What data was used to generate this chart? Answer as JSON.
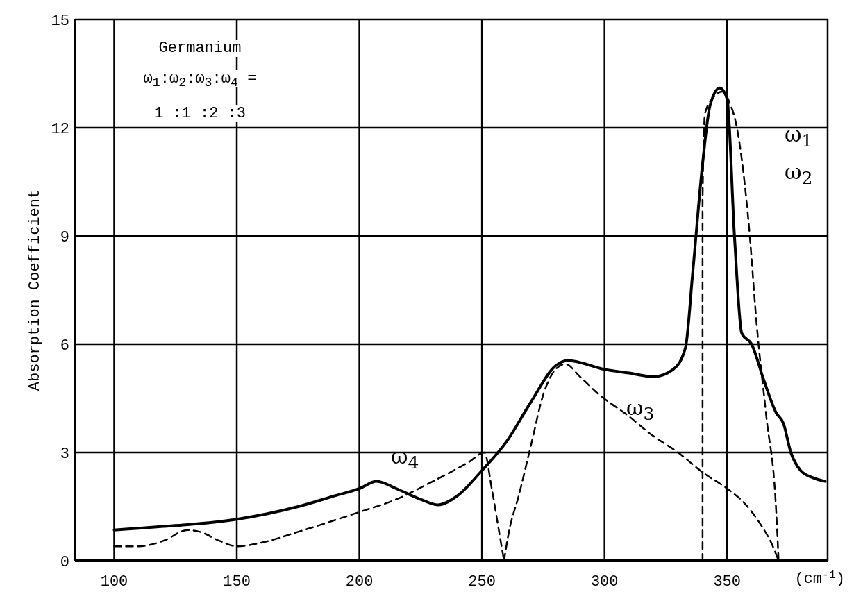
{
  "chart_data": {
    "type": "line",
    "xlabel": "(cm$^{-1}$)",
    "ylabel": "Absorption Coefficient",
    "xlim": [
      84,
      391
    ],
    "xticks": [
      100,
      150,
      200,
      250,
      300,
      350
    ],
    "ylim": [
      0,
      15
    ],
    "yticks": [
      0,
      3,
      6,
      9,
      12,
      15
    ],
    "grid": true,
    "annotations": [
      "Germanium",
      "ω$_{1}$:ω$_{2}$:ω$_{3}$:ω$_{4}$ =",
      "1 :1 :2 :3",
      "ω$_{4}$",
      "ω$_{3}$",
      "ω$_{1}$",
      "ω$_{2}$"
    ],
    "series": [
      {
        "color": "#000000",
        "line_style": "solid",
        "x": [
          100,
          110,
          120,
          130,
          150,
          175,
          190,
          200,
          207,
          215,
          225,
          232,
          240,
          250,
          260,
          270,
          280,
          285,
          300,
          310,
          320,
          328,
          333,
          336,
          340,
          343,
          347,
          350,
          353,
          356,
          360,
          365,
          370,
          373,
          376,
          380,
          385,
          390
        ],
        "values": [
          0.85,
          0.9,
          0.95,
          1.0,
          1.15,
          1.5,
          1.8,
          2.0,
          2.2,
          2.0,
          1.7,
          1.55,
          1.8,
          2.5,
          3.3,
          4.4,
          5.4,
          5.55,
          5.3,
          5.2,
          5.1,
          5.3,
          5.9,
          8.0,
          11.0,
          12.6,
          13.1,
          12.8,
          9.0,
          6.3,
          6.0,
          5.0,
          4.1,
          3.8,
          3.0,
          2.5,
          2.3,
          2.2
        ]
      },
      {
        "color": "#000000",
        "line_style": "dashed",
        "x": [
          100,
          110,
          120,
          130,
          135,
          143,
          150,
          160,
          175,
          200,
          215,
          230,
          245,
          251,
          254,
          257,
          259
        ],
        "values": [
          0.4,
          0.4,
          0.55,
          0.85,
          0.8,
          0.55,
          0.4,
          0.5,
          0.8,
          1.35,
          1.7,
          2.2,
          2.75,
          3.0,
          2.0,
          0.8,
          0
        ]
      },
      {
        "color": "#000000",
        "line_style": "dashed",
        "x": [
          259,
          261,
          265,
          270,
          275,
          280,
          284,
          290,
          297,
          310,
          319,
          330,
          340,
          350,
          357,
          364,
          368,
          371
        ],
        "values": [
          0,
          0.8,
          1.8,
          3.2,
          4.6,
          5.3,
          5.45,
          5.1,
          4.65,
          4.0,
          3.5,
          3.0,
          2.45,
          2.0,
          1.6,
          0.97,
          0.5,
          0
        ]
      },
      {
        "color": "#000000",
        "line_style": "dashed",
        "x": [
          340,
          340,
          341,
          344,
          348,
          351,
          354,
          359,
          362,
          366,
          370,
          371
        ],
        "values": [
          0,
          10,
          12.4,
          12.8,
          13.0,
          12.7,
          12.0,
          9.2,
          6.6,
          4.0,
          1.4,
          0
        ]
      }
    ]
  }
}
